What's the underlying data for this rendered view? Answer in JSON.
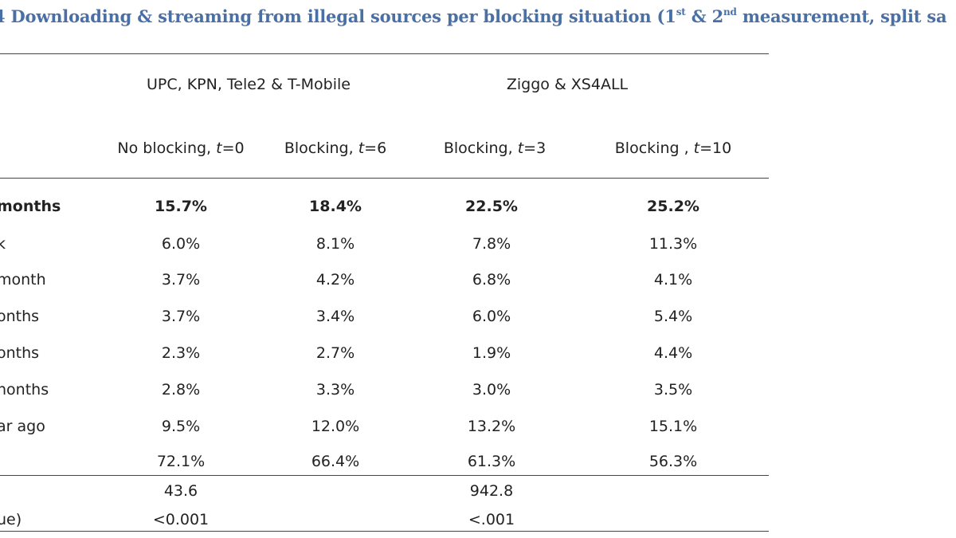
{
  "caption": {
    "prefix": "4 Downloading & streaming from illegal sources per blocking situation (1",
    "sup1": "st",
    "mid": " & 2",
    "sup2": "nd",
    "suffix": " measurement, split sa"
  },
  "groups": [
    {
      "label": "UPC, KPN, Tele2 & T-Mobile"
    },
    {
      "label": "Ziggo & XS4ALL"
    }
  ],
  "columns": [
    {
      "prefix": "No blocking, ",
      "var": "t",
      "suffix": "=0"
    },
    {
      "prefix": "Blocking, ",
      "var": "t",
      "suffix": "=6"
    },
    {
      "prefix": "Blocking, ",
      "var": "t",
      "suffix": "=3"
    },
    {
      "prefix": "Blocking , ",
      "var": "t",
      "suffix": "=10"
    }
  ],
  "rows": [
    {
      "label": " months",
      "values": [
        "15.7%",
        "18.4%",
        "22.5%",
        "25.2%"
      ],
      "bold": true
    },
    {
      "label": "k",
      "values": [
        "6.0%",
        "8.1%",
        "7.8%",
        "11.3%"
      ]
    },
    {
      "label": "month",
      "values": [
        "3.7%",
        "4.2%",
        "6.8%",
        "4.1%"
      ]
    },
    {
      "label": "onths",
      "values": [
        "3.7%",
        "3.4%",
        "6.0%",
        "5.4%"
      ]
    },
    {
      "label": "onths",
      "values": [
        "2.3%",
        "2.7%",
        "1.9%",
        "4.4%"
      ]
    },
    {
      "label": "nonths",
      "values": [
        "2.8%",
        "3.3%",
        "3.0%",
        "3.5%"
      ]
    },
    {
      "label": "ar ago",
      "values": [
        "9.5%",
        "12.0%",
        "13.2%",
        "15.1%"
      ]
    },
    {
      "label": "",
      "values": [
        "72.1%",
        "66.4%",
        "61.3%",
        "56.3%"
      ]
    }
  ],
  "stats": [
    {
      "label": "",
      "values": [
        "43.6",
        "",
        "942.8",
        ""
      ]
    },
    {
      "label": "ue)",
      "values": [
        "<0.001",
        "",
        "<.001",
        ""
      ]
    }
  ]
}
